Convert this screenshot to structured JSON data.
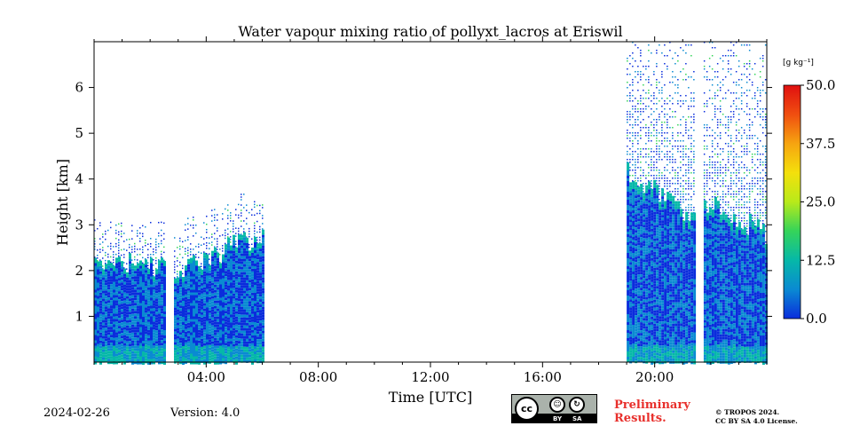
{
  "chart_data": {
    "type": "heatmap",
    "title": "Water vapour mixing ratio of pollyxt_lacros at Eriswil",
    "xlabel": "Time [UTC]",
    "ylabel": "Height [km]",
    "x_ticks": [
      "04:00",
      "08:00",
      "12:00",
      "16:00",
      "20:00"
    ],
    "x_tick_hours": [
      4,
      8,
      12,
      16,
      20
    ],
    "xlim_hours": [
      0,
      24
    ],
    "y_ticks": [
      "1",
      "2",
      "3",
      "4",
      "5",
      "6"
    ],
    "y_tick_values": [
      1,
      2,
      3,
      4,
      5,
      6
    ],
    "ylim_km": [
      0,
      7
    ],
    "colorbar": {
      "unit": "[g kg⁻¹]",
      "ticks": [
        "0.0",
        "12.5",
        "25.0",
        "37.5",
        "50.0"
      ],
      "tick_values": [
        0,
        12.5,
        25,
        37.5,
        50
      ],
      "range": [
        0,
        50
      ],
      "colors": [
        "#0a2ddc",
        "#0a8ad2",
        "#06b8a8",
        "#35d45a",
        "#b8ea1a",
        "#f4e00c",
        "#f6a410",
        "#f04e10",
        "#e01010"
      ]
    },
    "data_segments": [
      {
        "start_hour": 0.0,
        "end_hour": 2.5,
        "top_km_start": 2.2,
        "top_km_end": 2.1
      },
      {
        "start_hour": 2.85,
        "end_hour": 6.0,
        "top_km_start": 2.0,
        "top_km_end": 2.8
      },
      {
        "start_hour": 19.0,
        "end_hour": 21.45,
        "top_km_start": 4.2,
        "top_km_end": 3.0
      },
      {
        "start_hour": 21.75,
        "end_hour": 24.0,
        "top_km_start": 3.5,
        "top_km_end": 2.8
      }
    ],
    "sparse_top_km": 7.0,
    "grid": false,
    "legend": "colorbar-right"
  },
  "footer": {
    "date": "2024-02-26",
    "version": "Version: 4.0",
    "cc_by": "BY",
    "cc_sa": "SA",
    "cc": "cc",
    "preliminary": "Preliminary Results.",
    "copyright_line1": "© TROPOS 2024.",
    "copyright_line2": "CC BY SA 4.0 License."
  }
}
